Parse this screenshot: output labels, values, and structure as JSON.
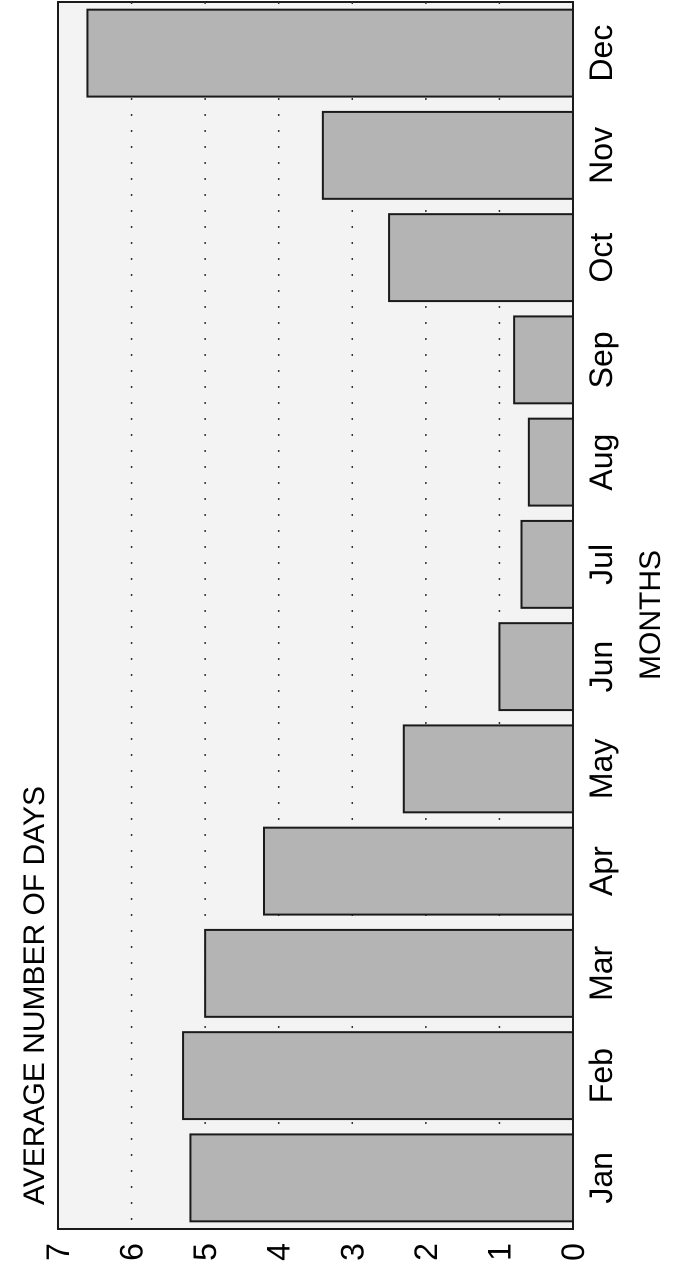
{
  "chart_data": {
    "type": "bar",
    "ylabel": "AVERAGE NUMBER OF DAYS",
    "xlabel": "MONTHS",
    "categories": [
      "Jan",
      "Feb",
      "Mar",
      "Apr",
      "May",
      "Jun",
      "Jul",
      "Aug",
      "Sep",
      "Oct",
      "Nov",
      "Dec"
    ],
    "values": [
      5.2,
      5.3,
      5.0,
      4.2,
      2.3,
      1.0,
      0.7,
      0.6,
      0.8,
      2.5,
      3.4,
      6.6
    ],
    "ylim": [
      0,
      7
    ],
    "yticks": [
      "0",
      "1",
      "2",
      "3",
      "4",
      "5",
      "6",
      "7"
    ],
    "grid": true,
    "orientation": "rotated-90-clockwise",
    "colors": {
      "bar_fill": "#b4b4b4",
      "bar_stroke": "#1a1a1a",
      "plot_background": "#f3f3f3",
      "grid": "#333333"
    }
  }
}
